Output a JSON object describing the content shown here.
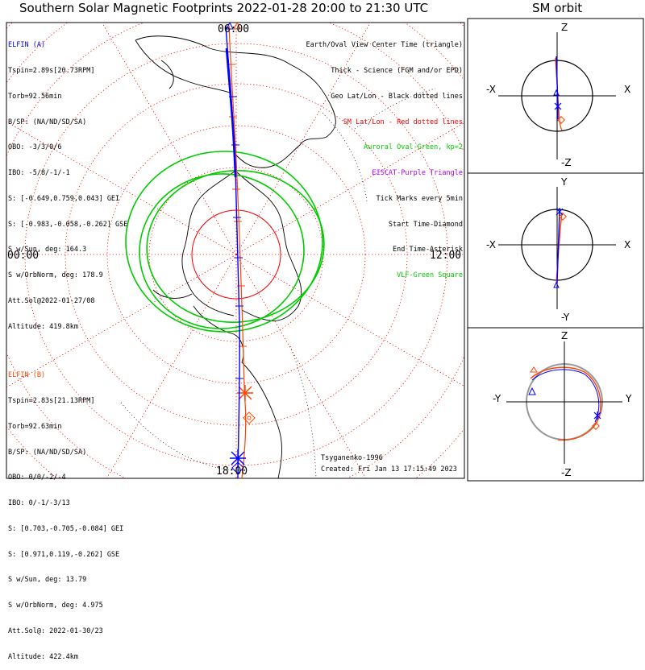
{
  "header": {
    "main_title": "Southern Solar Magnetic Footprints 2022-01-28 20:00 to 21:30 UTC",
    "orbit_title": "SM orbit"
  },
  "clock_labels": {
    "top": "06:00",
    "bottom": "18:00",
    "left": "00:00",
    "right": "12:00"
  },
  "probe_a": {
    "name": "ELFIN (A)",
    "lines": [
      "Tspin=2.89s[20.73RPM]",
      "Torb=92.56min",
      "B/SP: (NA/ND/SD/SA)",
      "OBO: -3/3/0/6",
      "IBO: -5/8/-1/-1",
      "S: [-0.649,0.759,0.043] GEI",
      "S: [-0.983,-0.058,-0.262] GSE",
      "S w/Sun, deg: 164.3",
      "S w/OrbNorm, deg: 178.9",
      "Att.Sol@2022-01-27/08",
      "Altitude: 419.8km"
    ]
  },
  "probe_b": {
    "name": "ELFIN (B)",
    "lines": [
      "Tspin=2.83s[21.13RPM]",
      "Torb=92.63min",
      "B/SP: (NA/ND/SD/SA)",
      "OBO: 0/0/-2/-4",
      "IBO: 0/-1/-3/13",
      "S: [0.703,-0.705,-0.084] GEI",
      "S: [0.971,0.119,-0.262] GSE",
      "S w/Sun, deg: 13.79",
      "S w/OrbNorm, deg: 4.975",
      "Att.Sol@: 2022-01-30/23",
      "Altitude: 422.4km"
    ]
  },
  "legend": [
    {
      "text": "Earth/Oval View Center Time (triangle)",
      "color": "#000000"
    },
    {
      "text": "Thick - Science (FGM and/or EPD)",
      "color": "#000000"
    },
    {
      "text": "Geo Lat/Lon - Black dotted lines",
      "color": "#000000"
    },
    {
      "text": "SM Lat/Lon - Red dotted lines",
      "color": "#ff0000"
    },
    {
      "text": "Auroral Oval-Green, kp=2",
      "color": "#00cc00"
    },
    {
      "text": "EISCAT-Purple Triangle",
      "color": "#b000ff"
    },
    {
      "text": "Tick Marks every 5min",
      "color": "#000000"
    },
    {
      "text": "Start Time-Diamond",
      "color": "#000000"
    },
    {
      "text": "End Time-Asterisk",
      "color": "#000000"
    },
    {
      "text": "VLF-Green Square",
      "color": "#00cc00"
    }
  ],
  "footer": {
    "model": "Tsyganenko-1996",
    "created": "Created: Fri Jan 13 17:15:49 2023"
  },
  "orbit_panels": [
    {
      "top": "Z",
      "bottom": "-Z",
      "left": "-X",
      "right": "X"
    },
    {
      "top": "Y",
      "bottom": "-Y",
      "left": "-X",
      "right": "X"
    },
    {
      "top": "Z",
      "bottom": "-Z",
      "left": "-Y",
      "right": "Y"
    }
  ],
  "colors": {
    "probe_a": "#0000ff",
    "probe_b": "#ff4500",
    "sm_grid": "#ff0000",
    "geo_grid": "#000000",
    "oval": "#00cc00"
  }
}
